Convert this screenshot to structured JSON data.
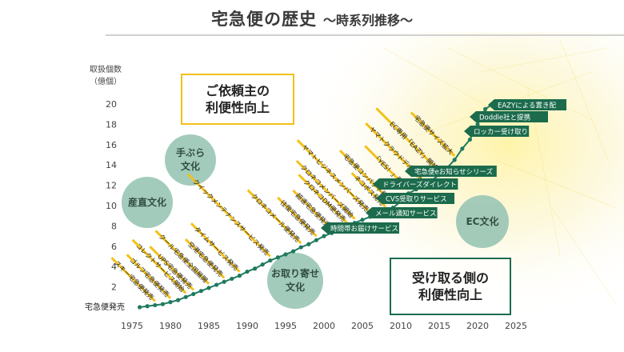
{
  "header": {
    "title": "宅急便の歴史",
    "subtitle": "〜時系列推移〜"
  },
  "axis": {
    "unit_line1": "取扱個数",
    "unit_line2": "（億個）"
  },
  "callouts": {
    "top_line1": "ご依頼主の",
    "top_line2": "利便性向上",
    "bottom_line1": "受け取る側の",
    "bottom_line2": "利便性向上"
  },
  "eras": [
    {
      "line1": "産直文化",
      "line2": ""
    },
    {
      "line1": "手ぶら",
      "line2": "文化"
    },
    {
      "line1": "お取り寄せ",
      "line2": "文化"
    },
    {
      "line1": "EC文化",
      "line2": ""
    }
  ],
  "colors": {
    "line": "#1f7a5f",
    "green_label": "#1b6b4c",
    "yellow_box": "#f2c11a",
    "circle": "#9cc7b6"
  },
  "chart_data": {
    "type": "line",
    "xlim": [
      1975,
      2025
    ],
    "ylim": [
      0,
      22
    ],
    "xticks": [
      1975,
      1980,
      1985,
      1990,
      1995,
      2000,
      2005,
      2010,
      2015,
      2020,
      2025
    ],
    "yticks": [
      2,
      4,
      6,
      8,
      10,
      12,
      14,
      16,
      18,
      20
    ],
    "x": [
      1976,
      1977,
      1978,
      1979,
      1980,
      1981,
      1982,
      1983,
      1984,
      1985,
      1986,
      1987,
      1988,
      1989,
      1990,
      1991,
      1992,
      1993,
      1994,
      1995,
      1996,
      1997,
      1998,
      1999,
      2000,
      2001,
      2002,
      2003,
      2004,
      2005,
      2006,
      2007,
      2008,
      2009,
      2010,
      2011,
      2012,
      2013,
      2014,
      2015,
      2016,
      2017,
      2018,
      2019,
      2020,
      2021,
      2022
    ],
    "y": [
      0.0,
      0.1,
      0.2,
      0.3,
      0.5,
      0.7,
      1.0,
      1.3,
      1.6,
      1.9,
      2.2,
      2.5,
      2.8,
      3.1,
      3.5,
      3.8,
      4.2,
      4.6,
      4.9,
      5.2,
      5.5,
      5.9,
      6.2,
      6.6,
      7.0,
      7.3,
      7.6,
      7.9,
      8.3,
      8.6,
      8.9,
      9.2,
      9.5,
      9.8,
      10.4,
      11.2,
      11.6,
      12.0,
      12.5,
      13.0,
      13.7,
      14.5,
      15.6,
      16.5,
      18.0,
      19.5,
      20.0
    ],
    "start_label": "宅急便発売",
    "events_up": [
      {
        "year": 1978,
        "label": "スキー宅急便発売"
      },
      {
        "year": 1980,
        "label": "ゴルフ宅急便発売"
      },
      {
        "year": 1982,
        "label": "コレクトサービス開始"
      },
      {
        "year": 1983,
        "label": "UPS宅急便発売"
      },
      {
        "year": 1985,
        "label": "クール宅急便全国展開"
      },
      {
        "year": 1987,
        "label": "空港宅急便発売"
      },
      {
        "year": 1989,
        "label": "タイムサービス発売"
      },
      {
        "year": 1993,
        "label": "クイックメンテナンスサービス発売"
      },
      {
        "year": 1997,
        "label": "クロネコメール便発売"
      },
      {
        "year": 1999,
        "label": "往復宅急便発売"
      },
      {
        "year": 2001,
        "label": "超速宅急便発売"
      },
      {
        "year": 2003,
        "label": "クロネコDM便発売"
      },
      {
        "year": 2004,
        "label": "クロネコメンバーズ開始"
      },
      {
        "year": 2006,
        "label": "ヤマトビジネスメンバーズ発売"
      },
      {
        "year": 2008,
        "label": "ネコポス発売"
      },
      {
        "year": 2009,
        "label": "宅急便コンパクト発売"
      },
      {
        "year": 2011,
        "label": "「YES！」発売"
      },
      {
        "year": 2013,
        "label": "ヤマトクラウドデポ発売"
      },
      {
        "year": 2015,
        "label": "EC専用「EAZY」開始"
      },
      {
        "year": 2017,
        "label": "宅急便サイズ拡大"
      }
    ],
    "events_right": [
      {
        "year": 2000,
        "label": "時間帯お届けサービス"
      },
      {
        "year": 2001,
        "label": "メール通知サービス"
      },
      {
        "year": 2002,
        "label": "CVS受取りサービス"
      },
      {
        "year": 2004,
        "label": "ドライバーズダイレクト"
      },
      {
        "year": 2006,
        "label": "宅急便eお知らせシリーズ"
      },
      {
        "year": 2017,
        "label": "ロッカー受け取り"
      },
      {
        "year": 2019,
        "label": "Doddle社と提携"
      },
      {
        "year": 2020,
        "label": "EAZYによる置き配"
      }
    ]
  }
}
